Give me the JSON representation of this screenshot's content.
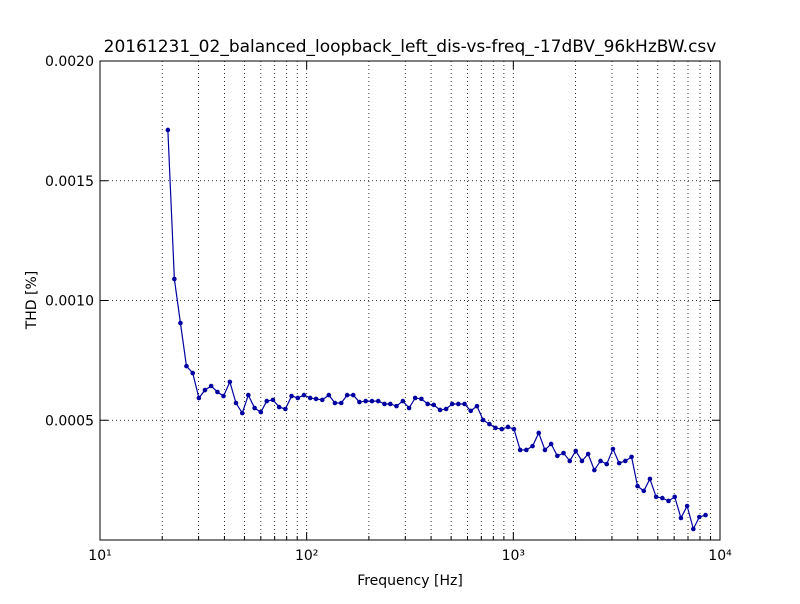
{
  "chart_data": {
    "type": "line",
    "title": "20161231_02_balanced_loopback_left_dis-vs-freq_-17dBV_96kHzBW.csv",
    "x_label": "Frequency [Hz]",
    "y_label": "THD [%]",
    "x_scale": "log",
    "grid": true,
    "minor_grid": true,
    "xlim": [
      10,
      10000
    ],
    "xticks": [
      {
        "value": 10,
        "label": "10¹"
      },
      {
        "value": 100,
        "label": "10²"
      },
      {
        "value": 1000,
        "label": "10³"
      },
      {
        "value": 10000,
        "label": "10⁴"
      }
    ],
    "ylim": [
      0,
      0.002
    ],
    "yticks": [
      0.0005,
      {
        "value": 0.001,
        "label": "0.0010"
      },
      0.0015,
      {
        "value": 0.002,
        "label": "0.0020"
      }
    ],
    "x": [
      21.3,
      22.9,
      24.5,
      26.2,
      28.1,
      30.1,
      32.2,
      34.5,
      37.0,
      39.6,
      42.5,
      45.5,
      48.8,
      52.2,
      56.0,
      60.0,
      64.1,
      68.7,
      73.6,
      78.9,
      84.5,
      90.6,
      97.0,
      104,
      111,
      119,
      128,
      137,
      147,
      157,
      168,
      180,
      193,
      207,
      222,
      238,
      254,
      272,
      292,
      313,
      335,
      359,
      385,
      412,
      442,
      473,
      506,
      542,
      581,
      622,
      667,
      714,
      766,
      820,
      879,
      942,
      1007,
      1079,
      1156,
      1239,
      1327,
      1422,
      1524,
      1633,
      1750,
      1875,
      2004,
      2148,
      2301,
      2466,
      2642,
      2831,
      3034,
      3251,
      3483,
      3733,
      3990,
      4276,
      4581,
      4909,
      5260,
      5636,
      6039,
      6471,
      6934,
      7430,
      7943,
      8511
    ],
    "series": [
      {
        "color": "#0000a0",
        "values": [
          0.001712,
          0.00109,
          0.000906,
          0.000726,
          0.000697,
          0.000593,
          0.000626,
          0.000643,
          0.000618,
          0.000601,
          0.00066,
          0.000572,
          0.00053,
          0.000605,
          0.000551,
          0.000534,
          0.00058,
          0.000585,
          0.000555,
          0.000547,
          0.000601,
          0.000593,
          0.000605,
          0.000593,
          0.000589,
          0.000585,
          0.000605,
          0.000572,
          0.000572,
          0.000605,
          0.000605,
          0.000576,
          0.00058,
          0.00058,
          0.00058,
          0.000568,
          0.000568,
          0.000559,
          0.00058,
          0.000551,
          0.000593,
          0.000589,
          0.000568,
          0.000564,
          0.000543,
          0.000547,
          0.000568,
          0.000568,
          0.000568,
          0.000539,
          0.000559,
          0.000501,
          0.000484,
          0.000468,
          0.000463,
          0.000472,
          0.000463,
          0.000376,
          0.000376,
          0.000392,
          0.000447,
          0.000376,
          0.000401,
          0.000351,
          0.000363,
          0.00033,
          0.000372,
          0.00033,
          0.000359,
          0.000292,
          0.00033,
          0.000317,
          0.00038,
          0.000321,
          0.00033,
          0.000347,
          0.000225,
          0.000205,
          0.000255,
          0.00018,
          0.000175,
          0.000163,
          0.00018,
          9.2e-05,
          0.000142,
          4.6e-05,
          9.6e-05,
          0.000104
        ]
      }
    ]
  }
}
